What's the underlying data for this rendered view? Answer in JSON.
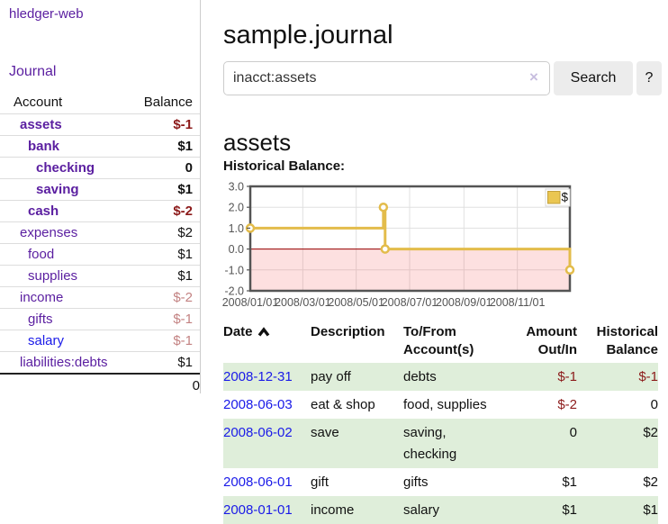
{
  "app": {
    "brand": "hledger-web",
    "nav_journal": "Journal"
  },
  "colors": {
    "link_purple": "#5A1EA0",
    "link_blue": "#1A1AE8",
    "negative_strong": "#8C1A1A",
    "negative_weak": "#C38282",
    "row_green": "#DFEEDA",
    "chart_line_gold": "#E3BC4B",
    "chart_negative_fill": "#FBDCDC",
    "chart_zero_line": "#990000",
    "chart_border": "#545454"
  },
  "sidebar": {
    "account_header": "Account",
    "balance_header": "Balance",
    "accounts": [
      {
        "name": "assets",
        "depth": 1,
        "bold": true,
        "link": "purple",
        "balance": "$-1",
        "balance_class": "strong-neg"
      },
      {
        "name": "bank",
        "depth": 2,
        "bold": true,
        "link": "purple",
        "balance": "$1",
        "balance_class": "strong"
      },
      {
        "name": "checking",
        "depth": 3,
        "bold": true,
        "link": "purple",
        "balance": "0",
        "balance_class": "strong"
      },
      {
        "name": "saving",
        "depth": 3,
        "bold": true,
        "link": "purple",
        "balance": "$1",
        "balance_class": "strong"
      },
      {
        "name": "cash",
        "depth": 2,
        "bold": true,
        "link": "purple",
        "balance": "$-2",
        "balance_class": "strong-neg"
      },
      {
        "name": "expenses",
        "depth": 1,
        "bold": false,
        "link": "purple",
        "balance": "$2",
        "balance_class": "plain"
      },
      {
        "name": "food",
        "depth": 2,
        "bold": false,
        "link": "purple",
        "balance": "$1",
        "balance_class": "plain"
      },
      {
        "name": "supplies",
        "depth": 2,
        "bold": false,
        "link": "purple",
        "balance": "$1",
        "balance_class": "plain"
      },
      {
        "name": "income",
        "depth": 1,
        "bold": false,
        "link": "purple",
        "balance": "$-2",
        "balance_class": "weak-neg"
      },
      {
        "name": "gifts",
        "depth": 2,
        "bold": false,
        "link": "purple",
        "balance": "$-1",
        "balance_class": "weak-neg"
      },
      {
        "name": "salary",
        "depth": 2,
        "bold": false,
        "link": "blue",
        "balance": "$-1",
        "balance_class": "weak-neg"
      },
      {
        "name": "liabilities:debts",
        "depth": 1,
        "bold": false,
        "link": "purple",
        "balance": "$1",
        "balance_class": "plain"
      }
    ],
    "total": "0"
  },
  "header": {
    "title": "sample.journal"
  },
  "search": {
    "value": "inacct:assets",
    "clear_icon": "×",
    "button": "Search",
    "help_button": "?"
  },
  "account_page": {
    "heading": "assets",
    "chart_label": "Historical Balance:"
  },
  "chart_data": {
    "type": "line",
    "step": true,
    "title": "Historical Balance:",
    "series": [
      {
        "name": "$",
        "x": [
          "2008-01-01",
          "2008-06-01",
          "2008-06-03",
          "2008-12-31"
        ],
        "y": [
          1,
          2,
          0,
          -1
        ]
      }
    ],
    "xlim": [
      "2008-01-01",
      "2008-12-31"
    ],
    "ylim": [
      -2,
      3
    ],
    "yticks": [
      3,
      2,
      1,
      0,
      -1,
      -2
    ],
    "ytick_labels": [
      "3.0",
      "2.0",
      "1.0",
      "0.0",
      "-1.0",
      "-2.0"
    ],
    "xticks": [
      "2008-01-01",
      "2008-03-01",
      "2008-05-01",
      "2008-07-01",
      "2008-09-01",
      "2008-11-01"
    ],
    "xtick_labels": [
      "2008/01/01",
      "2008/03/01",
      "2008/05/01",
      "2008/07/01",
      "2008/09/01",
      "2008/11/01"
    ],
    "legend": "$",
    "legend_position": "top-right",
    "grid": true,
    "negative_region_shaded": true
  },
  "register": {
    "columns": [
      "Date",
      "Description",
      "To/From Account(s)",
      "Amount Out/In",
      "Historical Balance"
    ],
    "sort": "date-ascending",
    "rows": [
      {
        "date": "2008-12-31",
        "description": "pay off",
        "accounts": "debts",
        "amount": "$-1",
        "amount_negative": true,
        "balance": "$-1",
        "balance_negative": true
      },
      {
        "date": "2008-06-03",
        "description": "eat & shop",
        "accounts": "food, supplies",
        "amount": "$-2",
        "amount_negative": true,
        "balance": "0",
        "balance_negative": false
      },
      {
        "date": "2008-06-02",
        "description": "save",
        "accounts": "saving, checking",
        "amount": "0",
        "amount_negative": false,
        "balance": "$2",
        "balance_negative": false
      },
      {
        "date": "2008-06-01",
        "description": "gift",
        "accounts": "gifts",
        "amount": "$1",
        "amount_negative": false,
        "balance": "$2",
        "balance_negative": false
      },
      {
        "date": "2008-01-01",
        "description": "income",
        "accounts": "salary",
        "amount": "$1",
        "amount_negative": false,
        "balance": "$1",
        "balance_negative": false
      }
    ]
  }
}
